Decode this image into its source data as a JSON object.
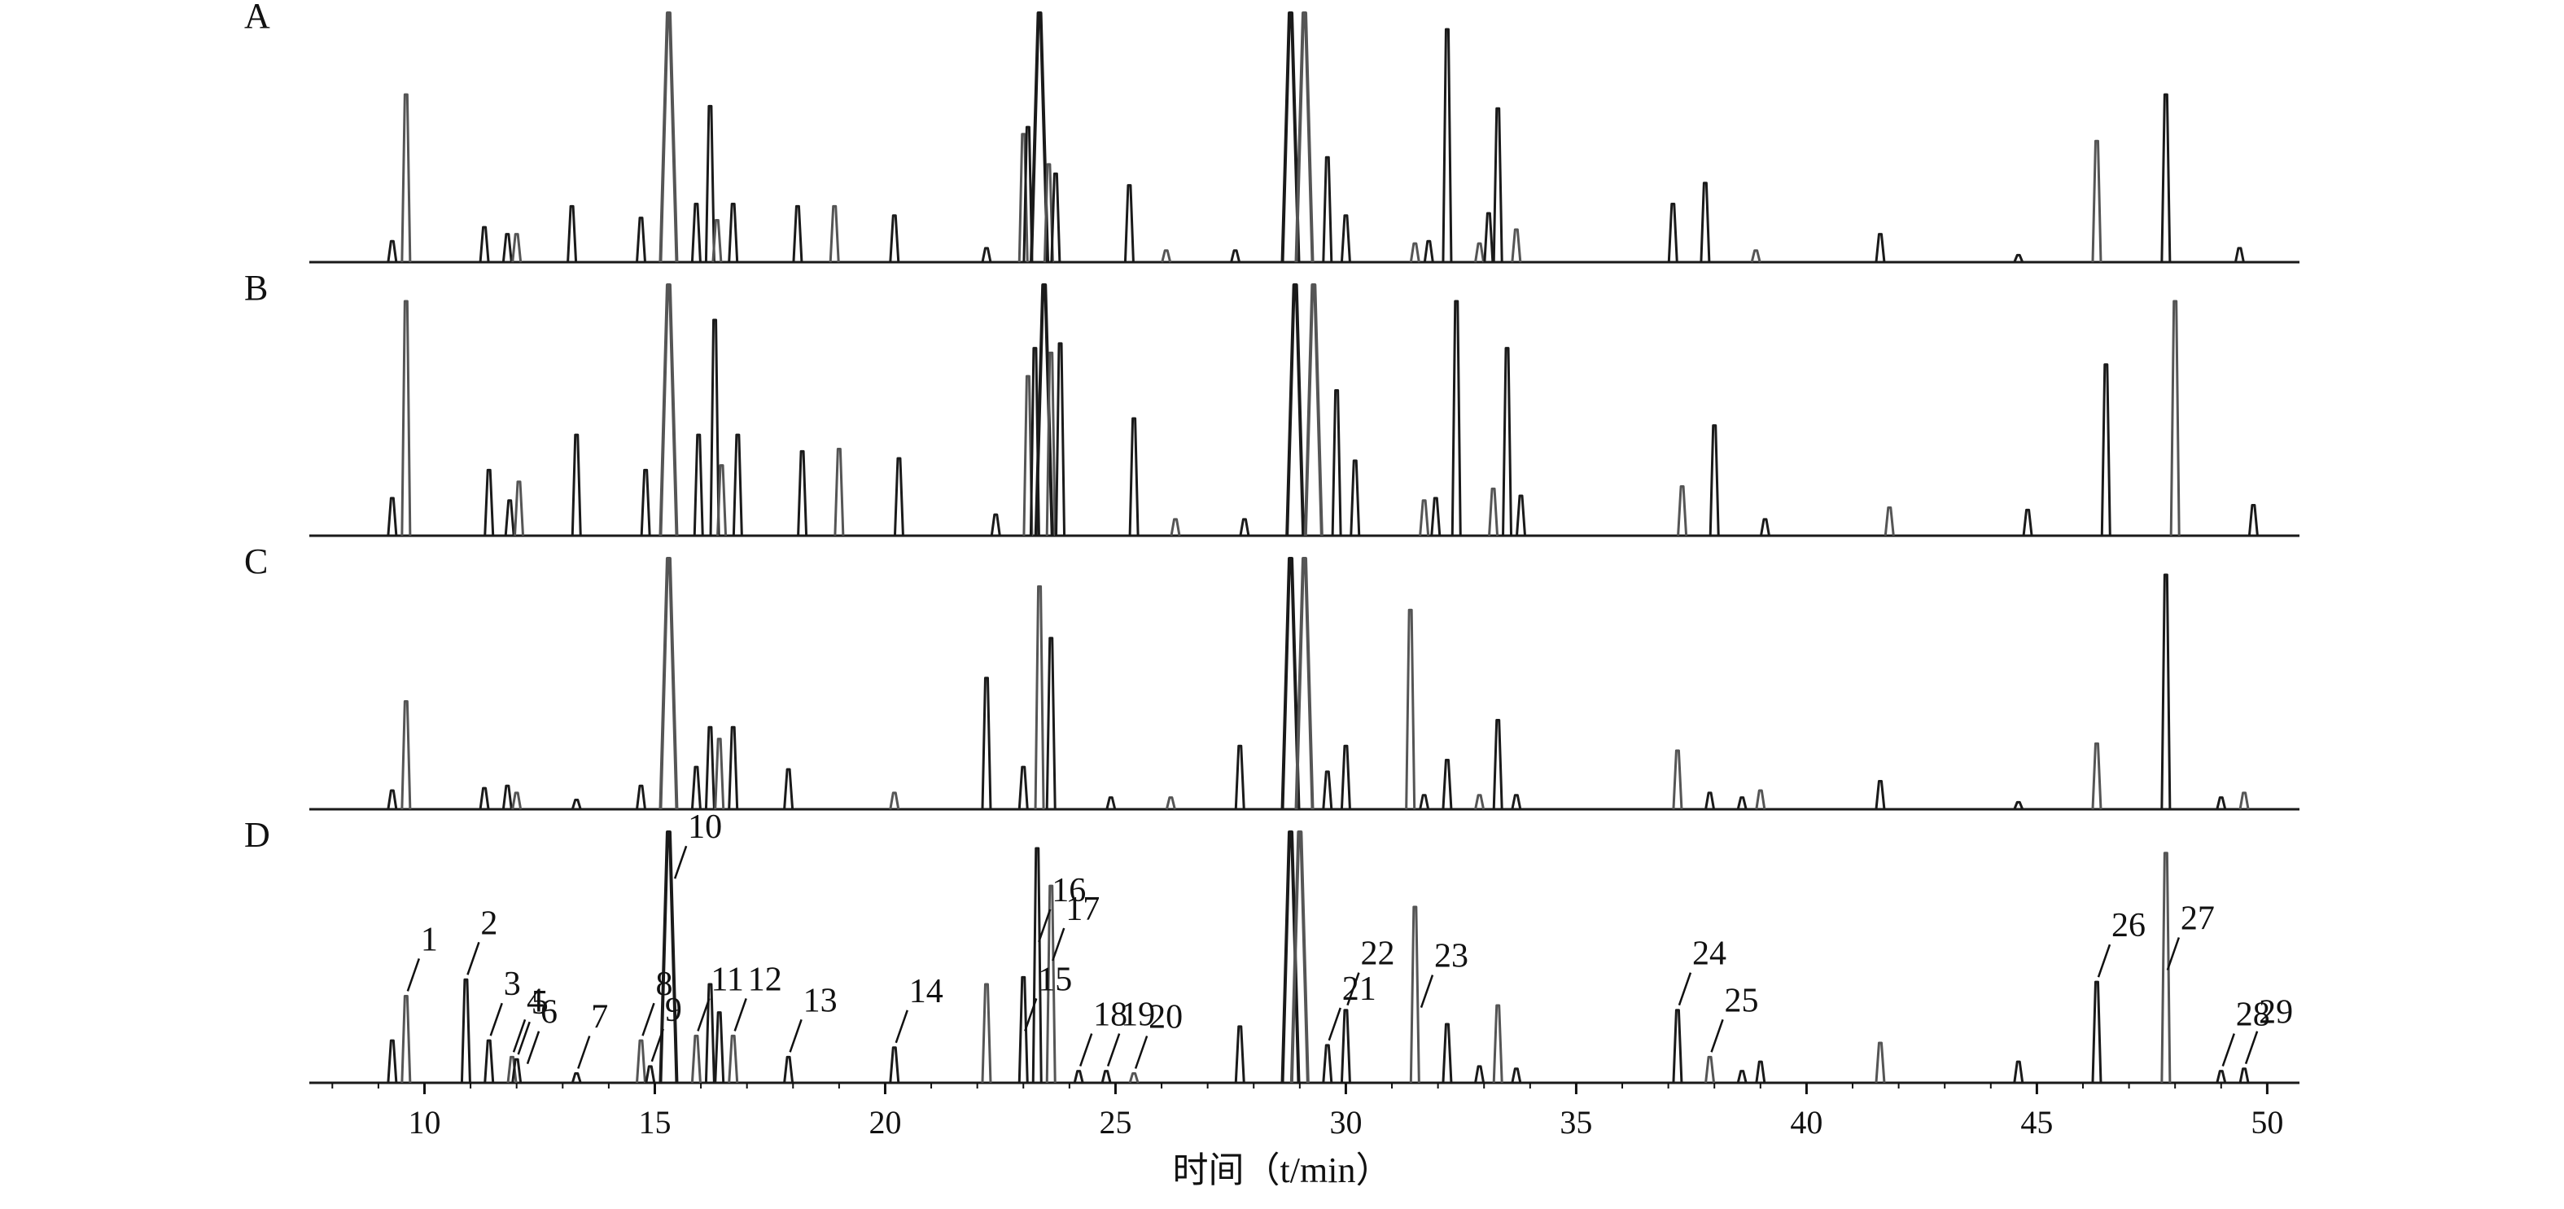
{
  "chart_data": {
    "type": "line",
    "xlabel": "时间（t/min）",
    "xlim": [
      7.5,
      50.7
    ],
    "x_ticks": [
      10,
      15,
      20,
      25,
      30,
      35,
      40,
      45,
      50
    ],
    "grid": false,
    "legend": "none",
    "colors": {
      "line": "#1a1a1a",
      "line_light": "#555555"
    },
    "panels": [
      {
        "label": "A",
        "peaks": [
          {
            "x": 9.3,
            "h": 0.09
          },
          {
            "x": 9.6,
            "h": 0.72
          },
          {
            "x": 11.3,
            "h": 0.15
          },
          {
            "x": 11.8,
            "h": 0.12
          },
          {
            "x": 12.0,
            "h": 0.12
          },
          {
            "x": 13.2,
            "h": 0.24
          },
          {
            "x": 14.7,
            "h": 0.19
          },
          {
            "x": 15.3,
            "h": 1.3
          },
          {
            "x": 15.9,
            "h": 0.25
          },
          {
            "x": 16.2,
            "h": 0.67
          },
          {
            "x": 16.35,
            "h": 0.18
          },
          {
            "x": 16.7,
            "h": 0.25
          },
          {
            "x": 18.1,
            "h": 0.24
          },
          {
            "x": 18.9,
            "h": 0.24
          },
          {
            "x": 20.2,
            "h": 0.2
          },
          {
            "x": 22.2,
            "h": 0.06
          },
          {
            "x": 23.0,
            "h": 0.55
          },
          {
            "x": 23.1,
            "h": 0.58
          },
          {
            "x": 23.35,
            "h": 1.3
          },
          {
            "x": 23.55,
            "h": 0.42
          },
          {
            "x": 23.7,
            "h": 0.38
          },
          {
            "x": 25.3,
            "h": 0.33
          },
          {
            "x": 26.1,
            "h": 0.05
          },
          {
            "x": 27.6,
            "h": 0.05
          },
          {
            "x": 28.8,
            "h": 1.3
          },
          {
            "x": 29.1,
            "h": 1.3
          },
          {
            "x": 29.6,
            "h": 0.45
          },
          {
            "x": 30.0,
            "h": 0.2
          },
          {
            "x": 31.5,
            "h": 0.08
          },
          {
            "x": 31.8,
            "h": 0.09
          },
          {
            "x": 32.2,
            "h": 1.0
          },
          {
            "x": 32.9,
            "h": 0.08
          },
          {
            "x": 33.1,
            "h": 0.21
          },
          {
            "x": 33.3,
            "h": 0.66
          },
          {
            "x": 33.7,
            "h": 0.14
          },
          {
            "x": 37.1,
            "h": 0.25
          },
          {
            "x": 37.8,
            "h": 0.34
          },
          {
            "x": 38.9,
            "h": 0.05
          },
          {
            "x": 41.6,
            "h": 0.12
          },
          {
            "x": 44.6,
            "h": 0.03
          },
          {
            "x": 46.3,
            "h": 0.52
          },
          {
            "x": 47.8,
            "h": 0.72
          },
          {
            "x": 49.4,
            "h": 0.06
          }
        ]
      },
      {
        "label": "B",
        "peaks": [
          {
            "x": 9.3,
            "h": 0.16
          },
          {
            "x": 9.6,
            "h": 1.0
          },
          {
            "x": 11.4,
            "h": 0.28
          },
          {
            "x": 11.85,
            "h": 0.15
          },
          {
            "x": 12.05,
            "h": 0.23
          },
          {
            "x": 13.3,
            "h": 0.43
          },
          {
            "x": 14.8,
            "h": 0.28
          },
          {
            "x": 15.3,
            "h": 1.3
          },
          {
            "x": 15.95,
            "h": 0.43
          },
          {
            "x": 16.3,
            "h": 0.92
          },
          {
            "x": 16.45,
            "h": 0.3
          },
          {
            "x": 16.8,
            "h": 0.43
          },
          {
            "x": 18.2,
            "h": 0.36
          },
          {
            "x": 19.0,
            "h": 0.37
          },
          {
            "x": 20.3,
            "h": 0.33
          },
          {
            "x": 22.4,
            "h": 0.09
          },
          {
            "x": 23.1,
            "h": 0.68
          },
          {
            "x": 23.25,
            "h": 0.8
          },
          {
            "x": 23.45,
            "h": 1.3
          },
          {
            "x": 23.6,
            "h": 0.78
          },
          {
            "x": 23.8,
            "h": 0.82
          },
          {
            "x": 25.4,
            "h": 0.5
          },
          {
            "x": 26.3,
            "h": 0.07
          },
          {
            "x": 27.8,
            "h": 0.07
          },
          {
            "x": 28.9,
            "h": 1.3
          },
          {
            "x": 29.3,
            "h": 1.3
          },
          {
            "x": 29.8,
            "h": 0.62
          },
          {
            "x": 30.2,
            "h": 0.32
          },
          {
            "x": 31.7,
            "h": 0.15
          },
          {
            "x": 31.95,
            "h": 0.16
          },
          {
            "x": 32.4,
            "h": 1.0
          },
          {
            "x": 33.2,
            "h": 0.2
          },
          {
            "x": 33.5,
            "h": 0.8
          },
          {
            "x": 33.8,
            "h": 0.17
          },
          {
            "x": 37.3,
            "h": 0.21
          },
          {
            "x": 38.0,
            "h": 0.47
          },
          {
            "x": 39.1,
            "h": 0.07
          },
          {
            "x": 41.8,
            "h": 0.12
          },
          {
            "x": 44.8,
            "h": 0.11
          },
          {
            "x": 46.5,
            "h": 0.73
          },
          {
            "x": 48.0,
            "h": 1.0
          },
          {
            "x": 49.7,
            "h": 0.13
          }
        ]
      },
      {
        "label": "C",
        "peaks": [
          {
            "x": 9.3,
            "h": 0.08
          },
          {
            "x": 9.6,
            "h": 0.46
          },
          {
            "x": 11.3,
            "h": 0.09
          },
          {
            "x": 11.8,
            "h": 0.1
          },
          {
            "x": 12.0,
            "h": 0.07
          },
          {
            "x": 13.3,
            "h": 0.04
          },
          {
            "x": 14.7,
            "h": 0.1
          },
          {
            "x": 15.3,
            "h": 1.3
          },
          {
            "x": 15.9,
            "h": 0.18
          },
          {
            "x": 16.2,
            "h": 0.35
          },
          {
            "x": 16.4,
            "h": 0.3
          },
          {
            "x": 16.7,
            "h": 0.35
          },
          {
            "x": 17.9,
            "h": 0.17
          },
          {
            "x": 20.2,
            "h": 0.07
          },
          {
            "x": 22.2,
            "h": 0.56
          },
          {
            "x": 23.0,
            "h": 0.18
          },
          {
            "x": 23.35,
            "h": 0.95
          },
          {
            "x": 23.6,
            "h": 0.73
          },
          {
            "x": 24.9,
            "h": 0.05
          },
          {
            "x": 26.2,
            "h": 0.05
          },
          {
            "x": 27.7,
            "h": 0.27
          },
          {
            "x": 28.8,
            "h": 1.3
          },
          {
            "x": 29.1,
            "h": 1.3
          },
          {
            "x": 29.6,
            "h": 0.16
          },
          {
            "x": 30.0,
            "h": 0.27
          },
          {
            "x": 31.4,
            "h": 0.85
          },
          {
            "x": 31.7,
            "h": 0.06
          },
          {
            "x": 32.2,
            "h": 0.21
          },
          {
            "x": 32.9,
            "h": 0.06
          },
          {
            "x": 33.3,
            "h": 0.38
          },
          {
            "x": 33.7,
            "h": 0.06
          },
          {
            "x": 37.2,
            "h": 0.25
          },
          {
            "x": 37.9,
            "h": 0.07
          },
          {
            "x": 38.6,
            "h": 0.05
          },
          {
            "x": 39.0,
            "h": 0.08
          },
          {
            "x": 41.6,
            "h": 0.12
          },
          {
            "x": 44.6,
            "h": 0.03
          },
          {
            "x": 46.3,
            "h": 0.28
          },
          {
            "x": 47.8,
            "h": 1.0
          },
          {
            "x": 49.0,
            "h": 0.05
          },
          {
            "x": 49.5,
            "h": 0.07
          }
        ]
      },
      {
        "label": "D",
        "peaks": [
          {
            "x": 9.3,
            "h": 0.18
          },
          {
            "x": 9.6,
            "h": 0.37
          },
          {
            "x": 10.9,
            "h": 0.44
          },
          {
            "x": 11.4,
            "h": 0.18
          },
          {
            "x": 11.9,
            "h": 0.11
          },
          {
            "x": 12.0,
            "h": 0.1
          },
          {
            "x": 13.3,
            "h": 0.04
          },
          {
            "x": 14.7,
            "h": 0.18
          },
          {
            "x": 14.9,
            "h": 0.07
          },
          {
            "x": 15.3,
            "h": 1.3
          },
          {
            "x": 15.9,
            "h": 0.2
          },
          {
            "x": 16.2,
            "h": 0.42
          },
          {
            "x": 16.4,
            "h": 0.3
          },
          {
            "x": 16.7,
            "h": 0.2
          },
          {
            "x": 17.9,
            "h": 0.11
          },
          {
            "x": 20.2,
            "h": 0.15
          },
          {
            "x": 22.2,
            "h": 0.42
          },
          {
            "x": 23.0,
            "h": 0.45
          },
          {
            "x": 23.3,
            "h": 1.0
          },
          {
            "x": 23.6,
            "h": 0.84
          },
          {
            "x": 24.2,
            "h": 0.05
          },
          {
            "x": 24.8,
            "h": 0.05
          },
          {
            "x": 25.4,
            "h": 0.04
          },
          {
            "x": 27.7,
            "h": 0.24
          },
          {
            "x": 28.8,
            "h": 1.3
          },
          {
            "x": 29.0,
            "h": 1.3
          },
          {
            "x": 29.6,
            "h": 0.16
          },
          {
            "x": 30.0,
            "h": 0.31
          },
          {
            "x": 31.5,
            "h": 0.75
          },
          {
            "x": 32.2,
            "h": 0.25
          },
          {
            "x": 32.9,
            "h": 0.07
          },
          {
            "x": 33.3,
            "h": 0.33
          },
          {
            "x": 33.7,
            "h": 0.06
          },
          {
            "x": 37.2,
            "h": 0.31
          },
          {
            "x": 37.9,
            "h": 0.11
          },
          {
            "x": 38.6,
            "h": 0.05
          },
          {
            "x": 39.0,
            "h": 0.09
          },
          {
            "x": 41.6,
            "h": 0.17
          },
          {
            "x": 44.6,
            "h": 0.09
          },
          {
            "x": 46.3,
            "h": 0.43
          },
          {
            "x": 47.8,
            "h": 0.98
          },
          {
            "x": 49.0,
            "h": 0.05
          },
          {
            "x": 49.5,
            "h": 0.06
          }
        ],
        "annotations": [
          {
            "label": "1",
            "x": 9.6,
            "h": 0.37
          },
          {
            "label": "2",
            "x": 10.9,
            "h": 0.44
          },
          {
            "label": "3",
            "x": 11.4,
            "h": 0.18
          },
          {
            "label": "4",
            "x": 11.9,
            "h": 0.11
          },
          {
            "label": "5",
            "x": 12.0,
            "h": 0.1
          },
          {
            "label": "6",
            "x": 12.2,
            "h": 0.06
          },
          {
            "label": "7",
            "x": 13.3,
            "h": 0.04
          },
          {
            "label": "8",
            "x": 14.7,
            "h": 0.18
          },
          {
            "label": "9",
            "x": 14.9,
            "h": 0.07
          },
          {
            "label": "10",
            "x": 15.4,
            "h": 0.85
          },
          {
            "label": "11",
            "x": 15.9,
            "h": 0.2
          },
          {
            "label": "12",
            "x": 16.7,
            "h": 0.2
          },
          {
            "label": "13",
            "x": 17.9,
            "h": 0.11
          },
          {
            "label": "14",
            "x": 20.2,
            "h": 0.15
          },
          {
            "label": "15",
            "x": 23.0,
            "h": 0.2
          },
          {
            "label": "16",
            "x": 23.3,
            "h": 0.58
          },
          {
            "label": "17",
            "x": 23.6,
            "h": 0.5
          },
          {
            "label": "18",
            "x": 24.2,
            "h": 0.05
          },
          {
            "label": "19",
            "x": 24.8,
            "h": 0.05
          },
          {
            "label": "20",
            "x": 25.4,
            "h": 0.04
          },
          {
            "label": "21",
            "x": 29.6,
            "h": 0.16
          },
          {
            "label": "22",
            "x": 30.0,
            "h": 0.31
          },
          {
            "label": "23",
            "x": 31.6,
            "h": 0.3
          },
          {
            "label": "24",
            "x": 37.2,
            "h": 0.31
          },
          {
            "label": "25",
            "x": 37.9,
            "h": 0.11
          },
          {
            "label": "26",
            "x": 46.3,
            "h": 0.43
          },
          {
            "label": "27",
            "x": 47.8,
            "h": 0.46
          },
          {
            "label": "28",
            "x": 49.0,
            "h": 0.05
          },
          {
            "label": "29",
            "x": 49.5,
            "h": 0.06
          }
        ]
      }
    ]
  }
}
